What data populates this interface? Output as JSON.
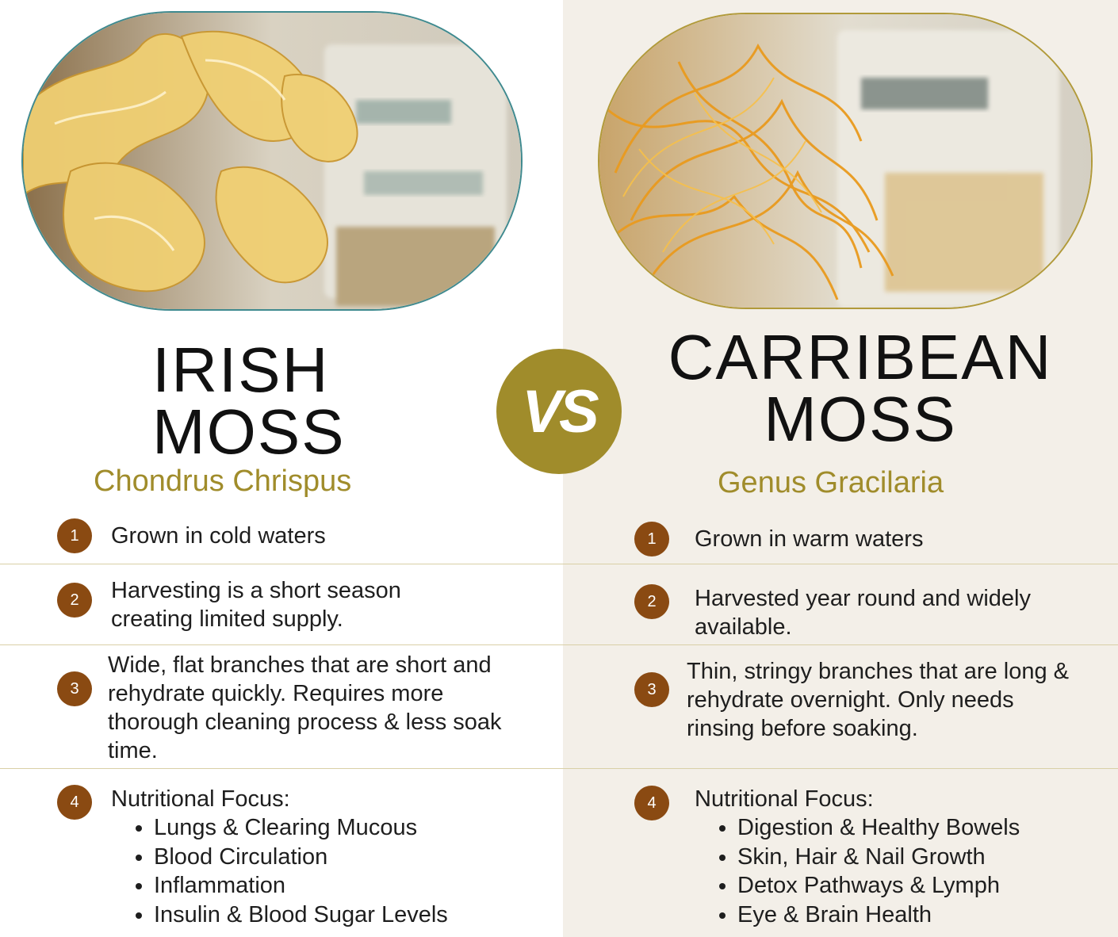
{
  "left": {
    "title_line1": "IRISH",
    "title_line2": "MOSS",
    "subtitle": "Chondrus Chrispus",
    "items": [
      {
        "num": "1",
        "text": "Grown in cold waters"
      },
      {
        "num": "2",
        "text": "Harvesting is a short season creating limited supply."
      },
      {
        "num": "3",
        "text": "Wide, flat branches that are short and rehydrate quickly. Requires more thorough cleaning process & less soak time."
      },
      {
        "num": "4",
        "text": "Nutritional Focus:",
        "bullets": [
          "Lungs & Clearing Mucous",
          "Blood Circulation",
          "Inflammation",
          "Insulin & Blood Sugar Levels"
        ]
      }
    ]
  },
  "vs_label": "VS",
  "right": {
    "title_line1": "CARRIBEAN",
    "title_line2": "MOSS",
    "subtitle": "Genus Gracilaria",
    "items": [
      {
        "num": "1",
        "text": "Grown in warm waters"
      },
      {
        "num": "2",
        "text": "Harvested year round and widely available."
      },
      {
        "num": "3",
        "text": "Thin, stringy branches that are long & rehydrate overnight. Only needs rinsing before soaking."
      },
      {
        "num": "4",
        "text": "Nutritional Focus:",
        "bullets": [
          "Digestion & Healthy Bowels",
          "Skin, Hair & Nail Growth",
          "Detox Pathways & Lymph",
          "Eye & Brain Health"
        ]
      }
    ]
  },
  "colors": {
    "accent": "#a08c2b",
    "badge": "#8a4a12",
    "right_bg": "#f3efe8"
  }
}
